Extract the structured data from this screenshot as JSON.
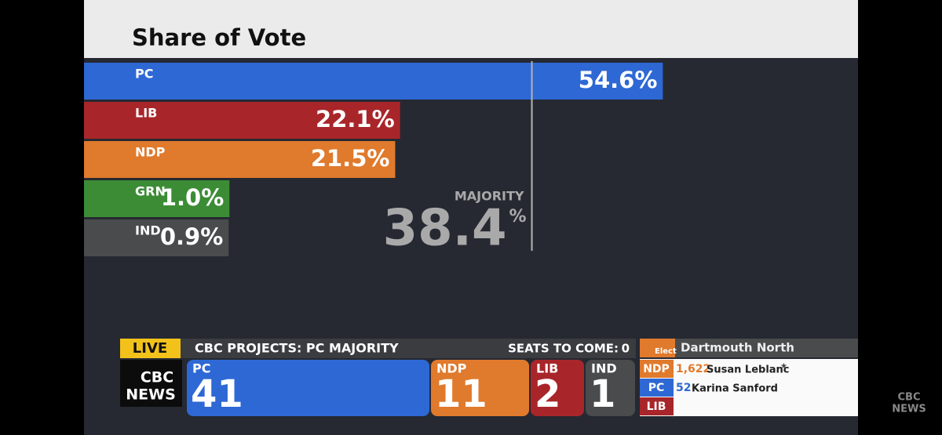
{
  "chart_data": {
    "type": "bar",
    "orientation": "horizontal",
    "title": "Share of Vote",
    "categories": [
      "PC",
      "LIB",
      "NDP",
      "GRN",
      "IND"
    ],
    "values": [
      54.6,
      22.1,
      21.5,
      1.0,
      0.9
    ],
    "value_labels": [
      "54.6%",
      "22.1%",
      "21.5%",
      "1.0%",
      "0.9%"
    ],
    "colors": [
      "#2e68d4",
      "#a8262a",
      "#e07a2c",
      "#3c8c36",
      "#4a4b4d"
    ],
    "majority": {
      "label": "MAJORITY",
      "value": 38.4,
      "unit": "%"
    }
  },
  "ticker": {
    "live": "LIVE",
    "headline": "CBC PROJECTS: PC MAJORITY",
    "seats_to_come_label": "SEATS TO COME:",
    "seats_to_come": "0",
    "logo": [
      "CBC",
      "NEWS"
    ],
    "seats": [
      {
        "party": "PC",
        "count": "41"
      },
      {
        "party": "NDP",
        "count": "11"
      },
      {
        "party": "LIB",
        "count": "2"
      },
      {
        "party": "IND",
        "count": "1"
      }
    ],
    "riding": {
      "status": "Elect",
      "name": "Dartmouth North",
      "candidates": [
        {
          "party": "NDP",
          "votes": "1,622",
          "name": "Susan Leblanc",
          "mark": "★"
        },
        {
          "party": "PC",
          "votes": "52",
          "name": "Karina Sanford"
        },
        {
          "party": "LIB"
        }
      ]
    }
  },
  "watermark": [
    "CBC",
    "NEWS"
  ]
}
